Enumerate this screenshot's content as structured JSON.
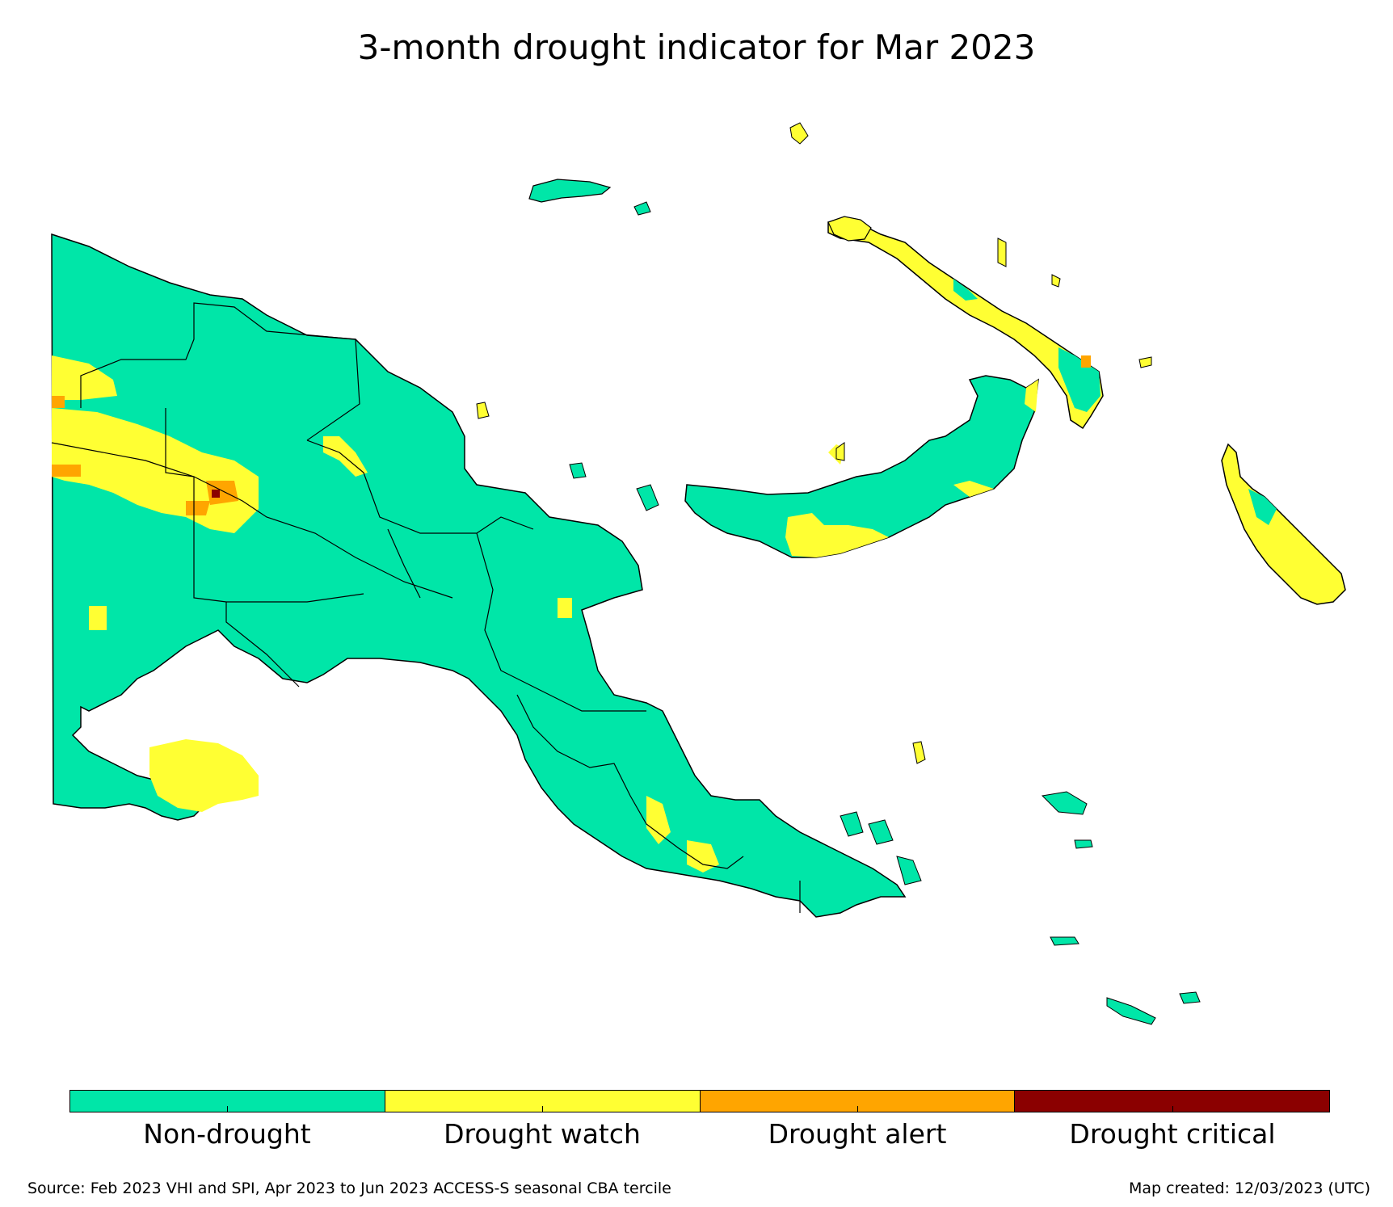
{
  "title": "3-month drought indicator for Mar 2023",
  "legend": [
    {
      "label": "Non-drought",
      "color": "#00e6a8"
    },
    {
      "label": "Drought watch",
      "color": "#ffff33"
    },
    {
      "label": "Drought alert",
      "color": "#ffa500"
    },
    {
      "label": "Drought critical",
      "color": "#8b0000"
    }
  ],
  "footer": {
    "source": "Source: Feb 2023 VHI and SPI, Apr 2023 to Jun 2023 ACCESS-S seasonal CBA tercile",
    "created": "Map created: 12/03/2023 (UTC)"
  }
}
